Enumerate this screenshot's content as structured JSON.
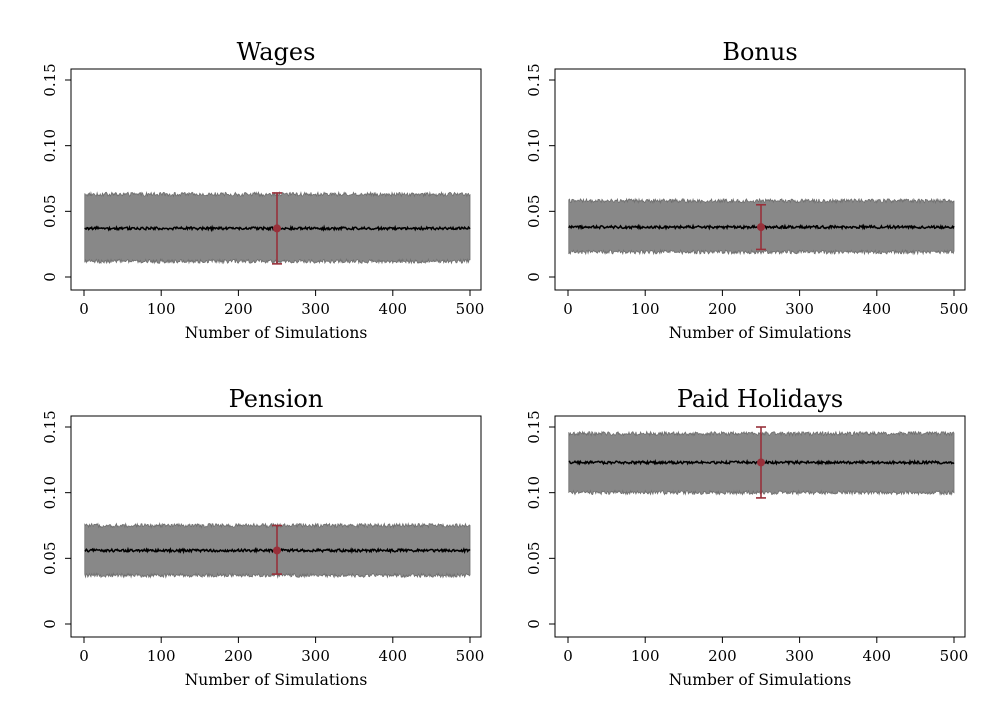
{
  "chart_data": [
    {
      "type": "line",
      "title": "Wages",
      "xlabel": "Number of Simulations",
      "ylabel": "",
      "xlim": [
        0,
        500
      ],
      "ylim": [
        0,
        0.15
      ],
      "xticks": [
        "0",
        "100",
        "200",
        "300",
        "400",
        "500"
      ],
      "yticks": [
        "0",
        "0.05",
        "0.10",
        "0.15"
      ],
      "series": [
        {
          "values": {
            "x_start": 1,
            "x_end": 500,
            "mean": 0.037,
            "band_low": 0.012,
            "band_high": 0.063
          }
        }
      ],
      "highlight": {
        "x": 250,
        "estimate": 0.037,
        "ci_low": 0.01,
        "ci_high": 0.064
      },
      "colors": {
        "band": "#888888",
        "band_edge": "#6f6f6f",
        "line": "#000000",
        "highlight": "#98303a"
      }
    },
    {
      "type": "line",
      "title": "Bonus",
      "xlabel": "Number of Simulations",
      "ylabel": "",
      "xlim": [
        0,
        500
      ],
      "ylim": [
        0,
        0.15
      ],
      "xticks": [
        "0",
        "100",
        "200",
        "300",
        "400",
        "500"
      ],
      "yticks": [
        "0",
        "0.05",
        "0.10",
        "0.15"
      ],
      "series": [
        {
          "values": {
            "x_start": 1,
            "x_end": 500,
            "mean": 0.038,
            "band_low": 0.019,
            "band_high": 0.058
          }
        }
      ],
      "highlight": {
        "x": 250,
        "estimate": 0.038,
        "ci_low": 0.021,
        "ci_high": 0.055
      },
      "colors": {
        "band": "#888888",
        "band_edge": "#6f6f6f",
        "line": "#000000",
        "highlight": "#98303a"
      }
    },
    {
      "type": "line",
      "title": "Pension",
      "xlabel": "Number of Simulations",
      "ylabel": "",
      "xlim": [
        0,
        500
      ],
      "ylim": [
        0,
        0.15
      ],
      "xticks": [
        "0",
        "100",
        "200",
        "300",
        "400",
        "500"
      ],
      "yticks": [
        "0",
        "0.05",
        "0.10",
        "0.15"
      ],
      "series": [
        {
          "values": {
            "x_start": 1,
            "x_end": 500,
            "mean": 0.056,
            "band_low": 0.037,
            "band_high": 0.075
          }
        }
      ],
      "highlight": {
        "x": 250,
        "estimate": 0.056,
        "ci_low": 0.038,
        "ci_high": 0.075
      },
      "colors": {
        "band": "#888888",
        "band_edge": "#6f6f6f",
        "line": "#000000",
        "highlight": "#98303a"
      }
    },
    {
      "type": "line",
      "title": "Paid Holidays",
      "xlabel": "Number of Simulations",
      "ylabel": "",
      "xlim": [
        0,
        500
      ],
      "ylim": [
        0,
        0.15
      ],
      "xticks": [
        "0",
        "100",
        "200",
        "300",
        "400",
        "500"
      ],
      "yticks": [
        "0",
        "0.05",
        "0.10",
        "0.15"
      ],
      "series": [
        {
          "values": {
            "x_start": 1,
            "x_end": 500,
            "mean": 0.123,
            "band_low": 0.1,
            "band_high": 0.145
          }
        }
      ],
      "highlight": {
        "x": 250,
        "estimate": 0.123,
        "ci_low": 0.096,
        "ci_high": 0.15
      },
      "colors": {
        "band": "#888888",
        "band_edge": "#6f6f6f",
        "line": "#000000",
        "highlight": "#98303a"
      }
    }
  ]
}
